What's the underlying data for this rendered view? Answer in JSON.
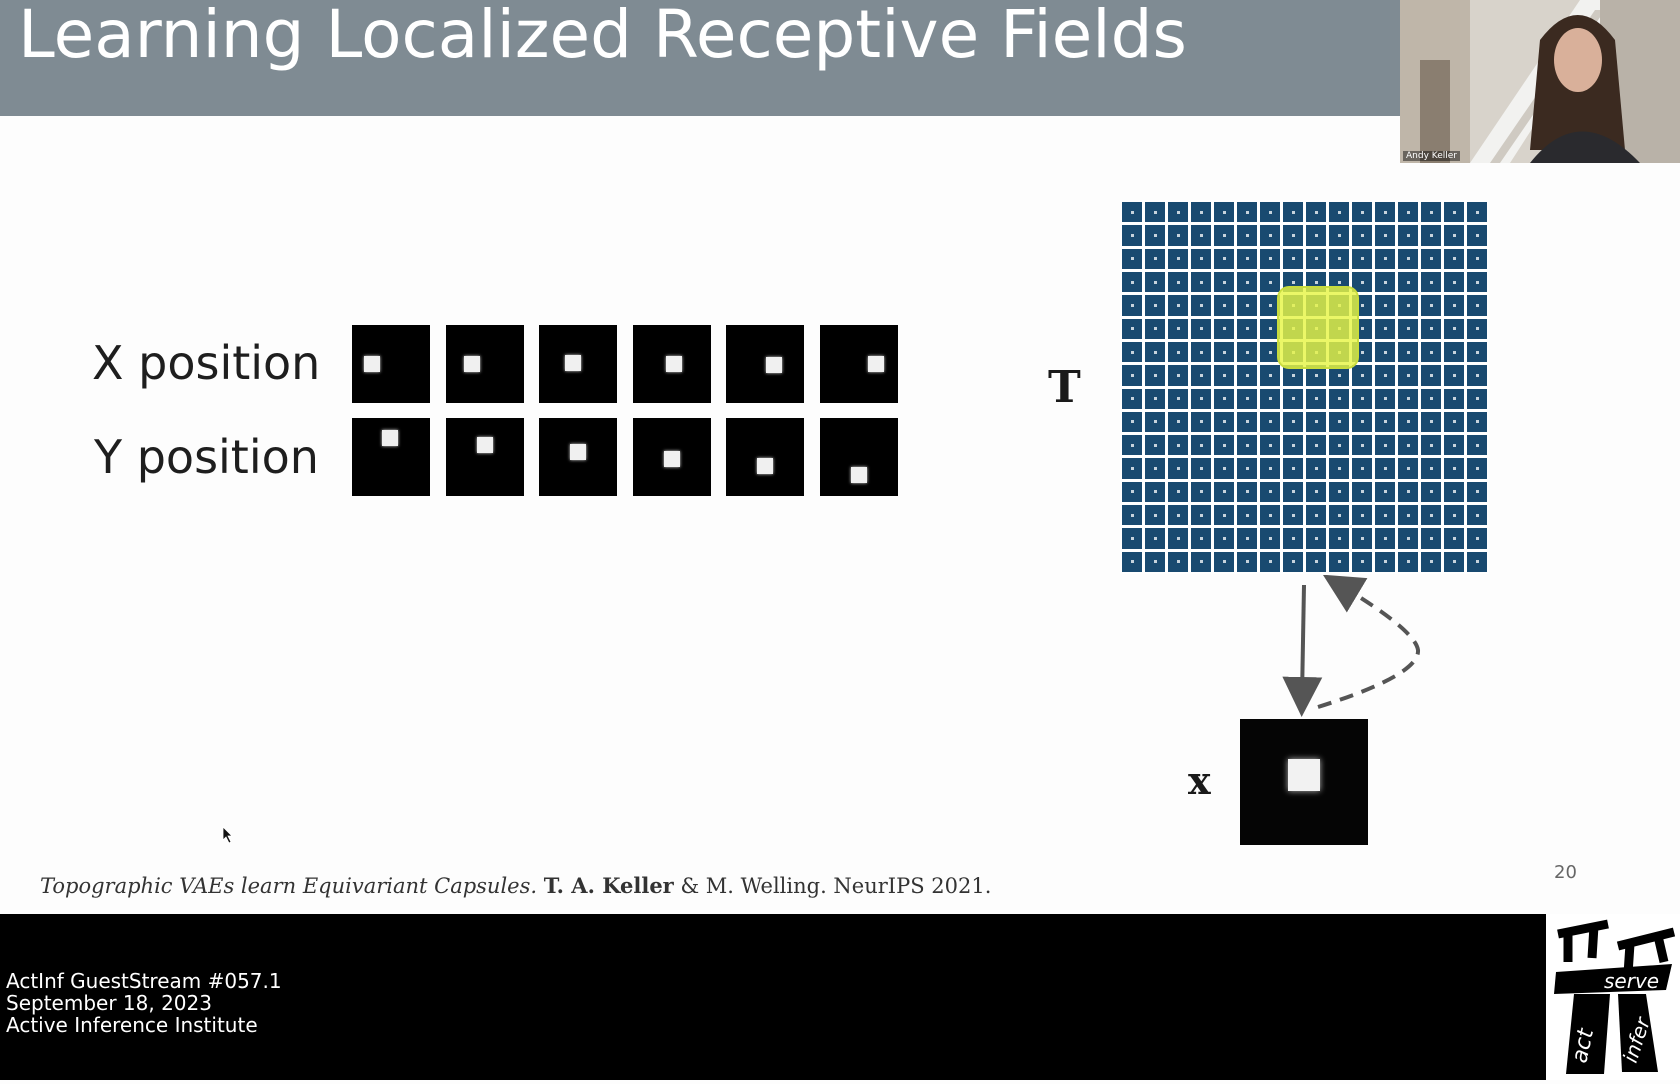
{
  "slide": {
    "title": "Learning Localized Receptive Fields",
    "x_label": "X position",
    "y_label": "Y position",
    "t_label": "T",
    "x_letter": "x",
    "page_number": "20",
    "citation": {
      "paper_title": "Topographic VAEs learn Equivariant Capsules.",
      "author_bold": "T. A. Keller",
      "rest": "& M. Welling. NeurIPS 2021."
    }
  },
  "webcam": {
    "name": "Andy Keller"
  },
  "footer": {
    "line1": "ActInf GuestStream #057.1",
    "line2": "September 18, 2023",
    "line3": "Active Inference Institute"
  },
  "logo": {
    "word1": "serve",
    "word2": "act",
    "word3": "infer"
  },
  "colors": {
    "title_bar": "#7f8b93",
    "grid_cell": "#194a70",
    "highlight": "#e6f546"
  }
}
